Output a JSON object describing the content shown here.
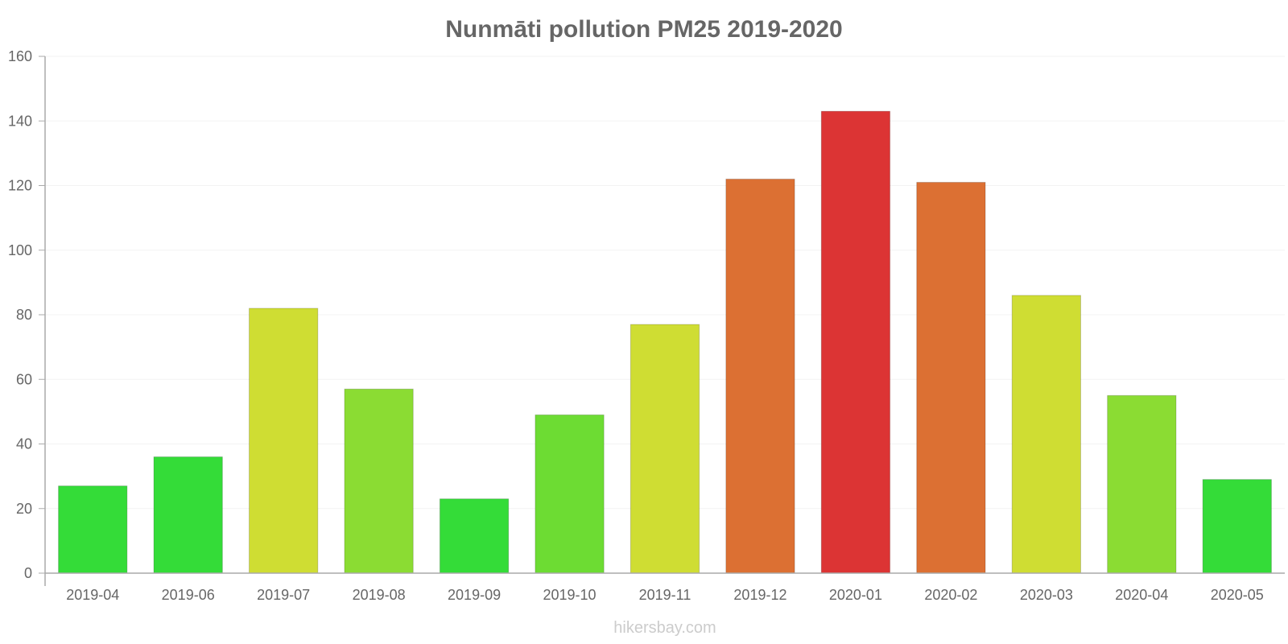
{
  "chart_data": {
    "type": "bar",
    "title": "Nunmāti pollution PM25 2019-2020",
    "xlabel": "",
    "ylabel": "",
    "ylim": [
      0,
      160
    ],
    "yticks": [
      0,
      20,
      40,
      60,
      80,
      100,
      120,
      140,
      160
    ],
    "grid": true,
    "categories": [
      "2019-04",
      "2019-06",
      "2019-07",
      "2019-08",
      "2019-09",
      "2019-10",
      "2019-11",
      "2019-12",
      "2020-01",
      "2020-02",
      "2020-03",
      "2020-04",
      "2020-05"
    ],
    "values": [
      27,
      36,
      82,
      57,
      23,
      49,
      77,
      122,
      143,
      121,
      86,
      55,
      29
    ],
    "colors": [
      "#34dc38",
      "#34dc38",
      "#cfdd33",
      "#8bdc33",
      "#34dc38",
      "#6ddc33",
      "#cfdd33",
      "#dc7033",
      "#dc3434",
      "#dc7033",
      "#cfdd33",
      "#8bdc33",
      "#34dc38"
    ],
    "axis_color": "#aaaaaa",
    "grid_color": "#f3f3f3"
  },
  "watermark": "hikersbay.com"
}
